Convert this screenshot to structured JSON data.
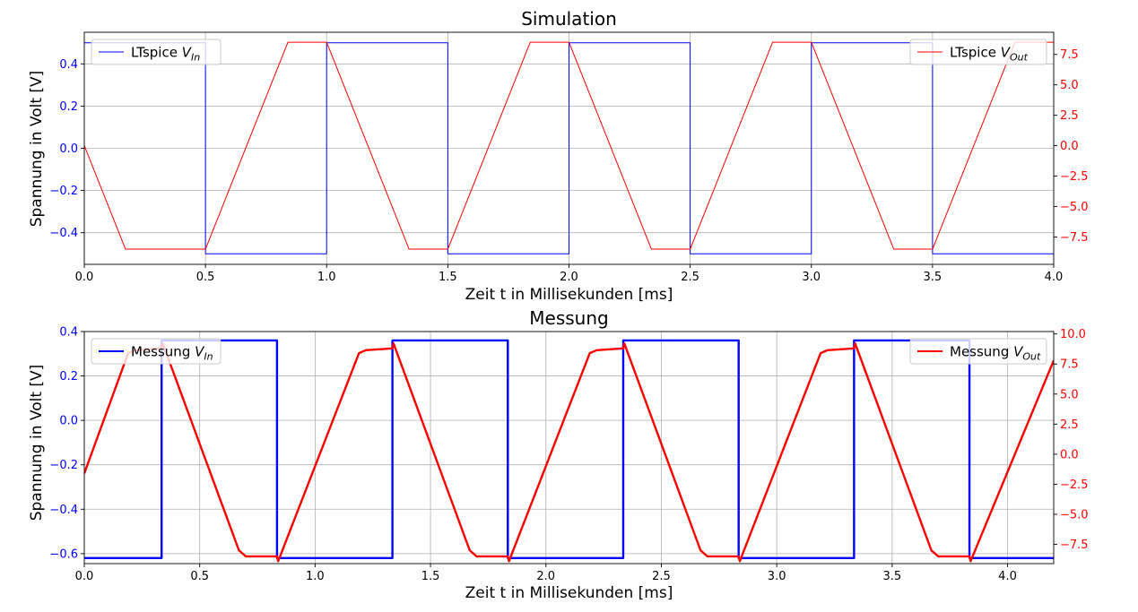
{
  "chart_data": [
    {
      "type": "line",
      "title": "Simulation",
      "xlabel": "Zeit t in Millisekunden [ms]",
      "ylabel": "Spannung in Volt [V]",
      "xlim": [
        0,
        4.0
      ],
      "xticks": [
        0.0,
        0.5,
        1.0,
        1.5,
        2.0,
        2.5,
        3.0,
        3.5,
        4.0
      ],
      "xtick_labels": [
        "0.0",
        "0.5",
        "1.0",
        "1.5",
        "2.0",
        "2.5",
        "3.0",
        "3.5",
        "4.0"
      ],
      "ylim": [
        -0.55,
        0.55
      ],
      "yticks": [
        -0.4,
        -0.2,
        0.0,
        0.2,
        0.4
      ],
      "ytick_labels": [
        "−0.4",
        "−0.2",
        "0.0",
        "0.2",
        "0.4"
      ],
      "y2lim": [
        -9.75,
        9.32
      ],
      "y2ticks": [
        -7.5,
        -5.0,
        -2.5,
        0.0,
        2.5,
        5.0,
        7.5
      ],
      "y2tick_labels": [
        "−7.5",
        "−5.0",
        "−2.5",
        "0.0",
        "2.5",
        "5.0",
        "7.5"
      ],
      "grid": true,
      "series": [
        {
          "name": "LTspice V_In",
          "legend_text": "LTspice ",
          "legend_sym": "V",
          "legend_sub": "In",
          "axis": "left",
          "color": "#0000ff",
          "style": "thin",
          "x": [
            0,
            0.5,
            0.5,
            1.0,
            1.0,
            1.5,
            1.5,
            2.0,
            2.0,
            2.5,
            2.5,
            3.0,
            3.0,
            3.5,
            3.5,
            4.0
          ],
          "y": [
            0.5,
            0.5,
            -0.5,
            -0.5,
            0.5,
            0.5,
            -0.5,
            -0.5,
            0.5,
            0.5,
            -0.5,
            -0.5,
            0.5,
            0.5,
            -0.5,
            -0.5
          ]
        },
        {
          "name": "LTspice V_Out",
          "legend_text": "LTspice ",
          "legend_sym": "V",
          "legend_sub": "Out",
          "axis": "right",
          "color": "#ff0000",
          "style": "thin",
          "x": [
            0,
            0.17,
            0.5,
            0.84,
            1.0,
            1.34,
            1.5,
            1.84,
            2.0,
            2.34,
            2.5,
            2.84,
            3.0,
            3.34,
            3.5,
            3.84,
            4.0
          ],
          "y": [
            0,
            -8.5,
            -8.5,
            8.5,
            8.5,
            -8.5,
            -8.5,
            8.5,
            8.5,
            -8.5,
            -8.5,
            8.5,
            8.5,
            -8.5,
            -8.5,
            8.5,
            8.5
          ]
        }
      ],
      "legends": {
        "left": "upper-left",
        "right": "upper-right"
      }
    },
    {
      "type": "line",
      "title": "Messung",
      "xlabel": "Zeit t in Millisekunden [ms]",
      "ylabel": "Spannung in Volt [V]",
      "xlim": [
        0,
        4.2
      ],
      "xticks": [
        0.0,
        0.5,
        1.0,
        1.5,
        2.0,
        2.5,
        3.0,
        3.5,
        4.0
      ],
      "xtick_labels": [
        "0.0",
        "0.5",
        "1.0",
        "1.5",
        "2.0",
        "2.5",
        "3.0",
        "3.5",
        "4.0"
      ],
      "ylim": [
        -0.645,
        0.4
      ],
      "yticks": [
        -0.6,
        -0.4,
        -0.2,
        0.0,
        0.2,
        0.4
      ],
      "ytick_labels": [
        "−0.6",
        "−0.4",
        "−0.2",
        "0.0",
        "0.2",
        "0.4"
      ],
      "y2lim": [
        -9.1,
        10.2
      ],
      "y2ticks": [
        -7.5,
        -5.0,
        -2.5,
        0.0,
        2.5,
        5.0,
        7.5,
        10.0
      ],
      "y2tick_labels": [
        "−7.5",
        "−5.0",
        "−2.5",
        "0.0",
        "2.5",
        "5.0",
        "7.5",
        "10.0"
      ],
      "grid": true,
      "series": [
        {
          "name": "Messung V_In",
          "legend_text": "Messung ",
          "legend_sym": "V",
          "legend_sub": "In",
          "axis": "left",
          "color": "#0000ff",
          "style": "thick",
          "x": [
            0,
            0.335,
            0.335,
            0.835,
            0.835,
            1.335,
            1.335,
            1.835,
            1.835,
            2.335,
            2.335,
            2.835,
            2.835,
            3.335,
            3.335,
            3.835,
            3.835,
            4.2
          ],
          "y": [
            -0.62,
            -0.62,
            0.36,
            0.36,
            -0.62,
            -0.62,
            0.36,
            0.36,
            -0.62,
            -0.62,
            0.36,
            0.36,
            -0.62,
            -0.62,
            0.36,
            0.36,
            -0.62,
            -0.62
          ]
        },
        {
          "name": "Messung V_Out",
          "legend_text": "Messung ",
          "legend_sym": "V",
          "legend_sub": "Out",
          "axis": "right",
          "color": "#ff0000",
          "style": "thick",
          "x": [
            0,
            0.19,
            0.22,
            0.335,
            0.34,
            0.67,
            0.7,
            0.835,
            0.84,
            1.19,
            1.22,
            1.335,
            1.34,
            1.67,
            1.7,
            1.835,
            1.84,
            2.19,
            2.22,
            2.335,
            2.34,
            2.67,
            2.7,
            2.835,
            2.84,
            3.19,
            3.22,
            3.335,
            3.34,
            3.67,
            3.7,
            3.835,
            3.84,
            4.2
          ],
          "y": [
            -1.6,
            8.4,
            8.65,
            8.8,
            9.2,
            -8.0,
            -8.5,
            -8.5,
            -8.9,
            8.4,
            8.65,
            8.8,
            9.2,
            -8.0,
            -8.5,
            -8.5,
            -8.9,
            8.4,
            8.65,
            8.8,
            9.2,
            -8.0,
            -8.5,
            -8.5,
            -8.9,
            8.4,
            8.65,
            8.8,
            9.2,
            -8.0,
            -8.5,
            -8.5,
            -8.9,
            7.8
          ]
        }
      ],
      "legends": {
        "left": "upper-left",
        "right": "upper-right"
      }
    }
  ]
}
